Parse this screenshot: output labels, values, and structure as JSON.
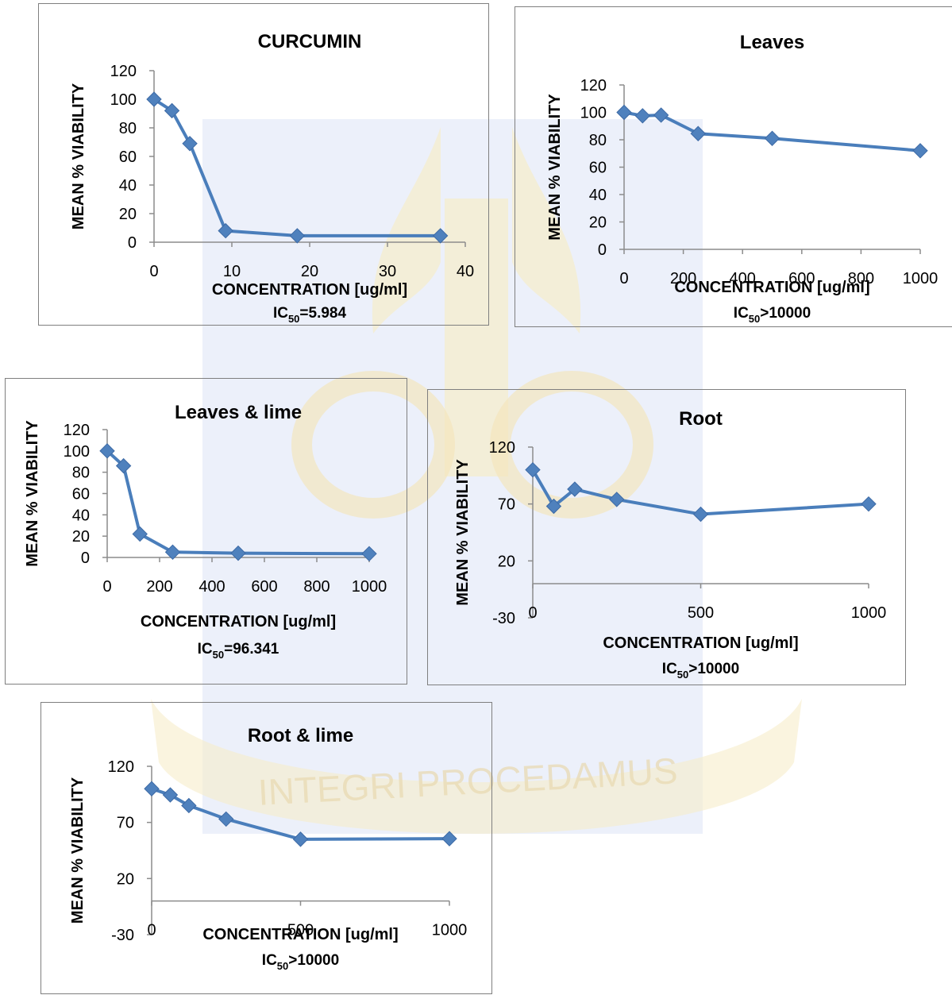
{
  "colors": {
    "series": "#4a7ebb",
    "marker": "#4f81bd",
    "axis": "#8c8c8c",
    "border": "#7f7f7f",
    "watermark_blue": "#b9c1e6",
    "watermark_gold": "#f1e1b5"
  },
  "watermark": {
    "motto": "INTEGRI PROCEDAMUS"
  },
  "chart_data": [
    {
      "type": "line",
      "title": "CURCUMIN",
      "xlabel": "CONCENTRATION [ug/ml]",
      "ylabel": "MEAN % VIABILITY",
      "ic50": {
        "prefix": "IC",
        "sub": "50",
        "value": "=5.984"
      },
      "xlim": [
        0,
        40
      ],
      "ylim": [
        0,
        120
      ],
      "x_ticks": [
        "0",
        "10",
        "20",
        "30",
        "40"
      ],
      "y_ticks": [
        "0",
        "20",
        "40",
        "60",
        "80",
        "100",
        "120"
      ],
      "x": [
        0,
        2.3,
        4.6,
        9.2,
        18.4,
        36.8
      ],
      "y": [
        100,
        92,
        69,
        8,
        4.5,
        4.5
      ]
    },
    {
      "type": "line",
      "title": "Leaves",
      "xlabel": "CONCENTRATION [ug/ml]",
      "ylabel": "MEAN % VIABILITY",
      "ic50": {
        "prefix": "IC",
        "sub": "50",
        "value": ">10000"
      },
      "xlim": [
        0,
        1000
      ],
      "ylim": [
        0,
        120
      ],
      "x_ticks": [
        "0",
        "200",
        "400",
        "600",
        "800",
        "1000"
      ],
      "y_ticks": [
        "0",
        "20",
        "40",
        "60",
        "80",
        "100",
        "120"
      ],
      "x": [
        0,
        62.5,
        125,
        250,
        500,
        1000
      ],
      "y": [
        100,
        97.5,
        98,
        84.5,
        81,
        72
      ]
    },
    {
      "type": "line",
      "title": "Leaves & lime",
      "xlabel": "CONCENTRATION [ug/ml]",
      "ylabel": "MEAN % VIABILITY",
      "ic50": {
        "prefix": "IC",
        "sub": "50",
        "value": "=96.341"
      },
      "xlim": [
        0,
        1000
      ],
      "ylim": [
        0,
        120
      ],
      "x_ticks": [
        "0",
        "200",
        "400",
        "600",
        "800",
        "1000"
      ],
      "y_ticks": [
        "0",
        "20",
        "40",
        "60",
        "80",
        "100",
        "120"
      ],
      "x": [
        0,
        62.5,
        125,
        250,
        500,
        1000
      ],
      "y": [
        100,
        86,
        22,
        5,
        4,
        3.5
      ]
    },
    {
      "type": "line",
      "title": "Root",
      "xlabel": "CONCENTRATION [ug/ml]",
      "ylabel": "MEAN % VIABILITY",
      "ic50": {
        "prefix": "IC",
        "sub": "50",
        "value": ">10000"
      },
      "xlim": [
        0,
        1000
      ],
      "ylim": [
        -30,
        120
      ],
      "x_ticks": [
        "0",
        "500",
        "1000"
      ],
      "y_ticks": [
        "-30",
        "20",
        "70",
        "120"
      ],
      "x": [
        0,
        62.5,
        125,
        250,
        500,
        1000
      ],
      "y": [
        100,
        68,
        83,
        74,
        61,
        70
      ]
    },
    {
      "type": "line",
      "title": "Root & lime",
      "xlabel": "CONCENTRATION [ug/ml]",
      "ylabel": "MEAN % VIABILITY",
      "ic50": {
        "prefix": "IC",
        "sub": "50",
        "value": ">10000"
      },
      "xlim": [
        0,
        1000
      ],
      "ylim": [
        -30,
        120
      ],
      "x_ticks": [
        "0",
        "500",
        "1000"
      ],
      "y_ticks": [
        "-30",
        "20",
        "70",
        "120"
      ],
      "x": [
        0,
        62.5,
        125,
        250,
        500,
        1000
      ],
      "y": [
        100,
        94.5,
        85,
        73,
        55,
        55.5
      ]
    }
  ]
}
